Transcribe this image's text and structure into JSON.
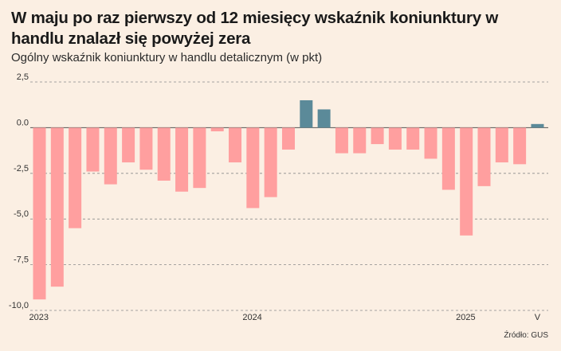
{
  "header": {
    "title": "W maju po raz pierwszy od 12 miesięcy wskaźnik koniunktury w handlu znalazł się powyżej zera",
    "subtitle": "Ogólny wskaźnik koniunktury w handlu detalicznym (w pkt)"
  },
  "footer": {
    "source": "Źródło: GUS"
  },
  "colors": {
    "negative": "#ff9f9f",
    "positive": "#5b8a99",
    "gridline": "#8a8a8a",
    "zero_line": "#555555"
  },
  "chart_data": {
    "type": "bar",
    "title": "W maju po raz pierwszy od 12 miesięcy wskaźnik koniunktury w handlu znalazł się powyżej zera",
    "subtitle": "Ogólny wskaźnik koniunktury w handlu detalicznym (w pkt)",
    "xlabel": "",
    "ylabel": "",
    "ylim": [
      -10,
      2.5
    ],
    "yticks": [
      2.5,
      0,
      -2.5,
      -5,
      -7.5,
      -10
    ],
    "ytick_labels": [
      "2,5",
      "0.0",
      "-2,5",
      "-5,0",
      "-7,5",
      "-10,0"
    ],
    "grid": true,
    "x_labels": [
      {
        "index": 0,
        "label": "2023"
      },
      {
        "index": 12,
        "label": "2024"
      },
      {
        "index": 24,
        "label": "2025"
      },
      {
        "index": 28,
        "label": "V"
      }
    ],
    "values": [
      -9.4,
      -8.7,
      -5.5,
      -2.4,
      -3.1,
      -1.9,
      -2.3,
      -2.9,
      -3.5,
      -3.3,
      -0.2,
      -1.9,
      -4.4,
      -3.8,
      -1.2,
      1.5,
      1.0,
      -1.4,
      -1.4,
      -0.9,
      -1.2,
      -1.2,
      -1.7,
      -3.4,
      -5.9,
      -3.2,
      -1.9,
      -2.0,
      0.2
    ]
  }
}
